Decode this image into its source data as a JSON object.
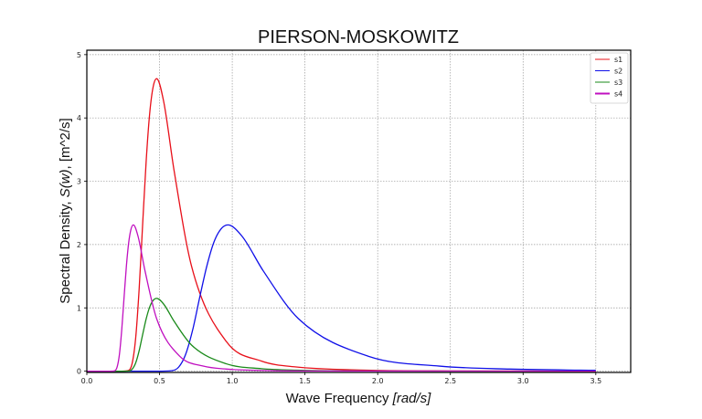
{
  "chart_data": {
    "type": "line",
    "title": "PIERSON-MOSKOWITZ",
    "xlabel_text": "Wave Frequency ",
    "xlabel_math": "[rad/s]",
    "ylabel_text": "Spectral Density, ",
    "ylabel_math": "S(w)",
    "ylabel_unit": ", [m^2/s]",
    "xlim": [
      0,
      3.74
    ],
    "ylim": [
      -0.02,
      5.07
    ],
    "xticks": [
      "0.0",
      "0.5",
      "1.0",
      "1.5",
      "2.0",
      "2.5",
      "3.0",
      "3.5"
    ],
    "yticks": [
      "0",
      "1",
      "2",
      "3",
      "4",
      "5"
    ],
    "grid": true,
    "legend_position": "top-right",
    "series": [
      {
        "name": "s1",
        "color": "#e8101a",
        "x": [
          0,
          0.24,
          0.288,
          0.312,
          0.336,
          0.36,
          0.384,
          0.408,
          0.432,
          0.456,
          0.48,
          0.528,
          0.6,
          0.72,
          0.96,
          1.2,
          1.44,
          1.92,
          2.4,
          3.5
        ],
        "y": [
          0,
          0,
          0.013,
          0.127,
          0.527,
          1.307,
          2.329,
          3.317,
          4.066,
          4.491,
          4.62,
          4.264,
          3.169,
          1.659,
          0.466,
          0.16,
          0.066,
          0.016,
          0.005,
          0.001
        ]
      },
      {
        "name": "s2",
        "color": "#1010e8",
        "x": [
          0,
          0.485,
          0.582,
          0.631,
          0.679,
          0.728,
          0.776,
          0.825,
          0.873,
          0.922,
          0.97,
          1.067,
          1.213,
          1.455,
          1.94,
          2.425,
          2.91,
          3.5
        ],
        "y": [
          0,
          0,
          0.007,
          0.063,
          0.263,
          0.654,
          1.164,
          1.659,
          2.033,
          2.245,
          2.31,
          2.132,
          1.585,
          0.829,
          0.233,
          0.08,
          0.033,
          0.013
        ]
      },
      {
        "name": "s3",
        "color": "#1a8a1a",
        "x": [
          0,
          0.24,
          0.288,
          0.312,
          0.336,
          0.36,
          0.384,
          0.408,
          0.432,
          0.456,
          0.48,
          0.528,
          0.6,
          0.72,
          0.96,
          1.2,
          1.44,
          1.92,
          2.4,
          3.5
        ],
        "y": [
          0,
          0,
          0.003,
          0.032,
          0.131,
          0.325,
          0.58,
          0.826,
          1.012,
          1.118,
          1.15,
          1.061,
          0.789,
          0.413,
          0.116,
          0.04,
          0.016,
          0.004,
          0.001,
          0.0002
        ]
      },
      {
        "name": "s4",
        "color": "#c010c0",
        "x": [
          0,
          0.16,
          0.192,
          0.208,
          0.224,
          0.24,
          0.256,
          0.272,
          0.288,
          0.304,
          0.32,
          0.352,
          0.4,
          0.48,
          0.64,
          0.8,
          0.96,
          1.28,
          1.6,
          3.5
        ],
        "y": [
          0,
          0,
          0.007,
          0.063,
          0.263,
          0.654,
          1.164,
          1.659,
          2.033,
          2.245,
          2.31,
          2.132,
          1.585,
          0.829,
          0.233,
          0.08,
          0.033,
          0.008,
          0.003,
          0
        ]
      }
    ]
  }
}
